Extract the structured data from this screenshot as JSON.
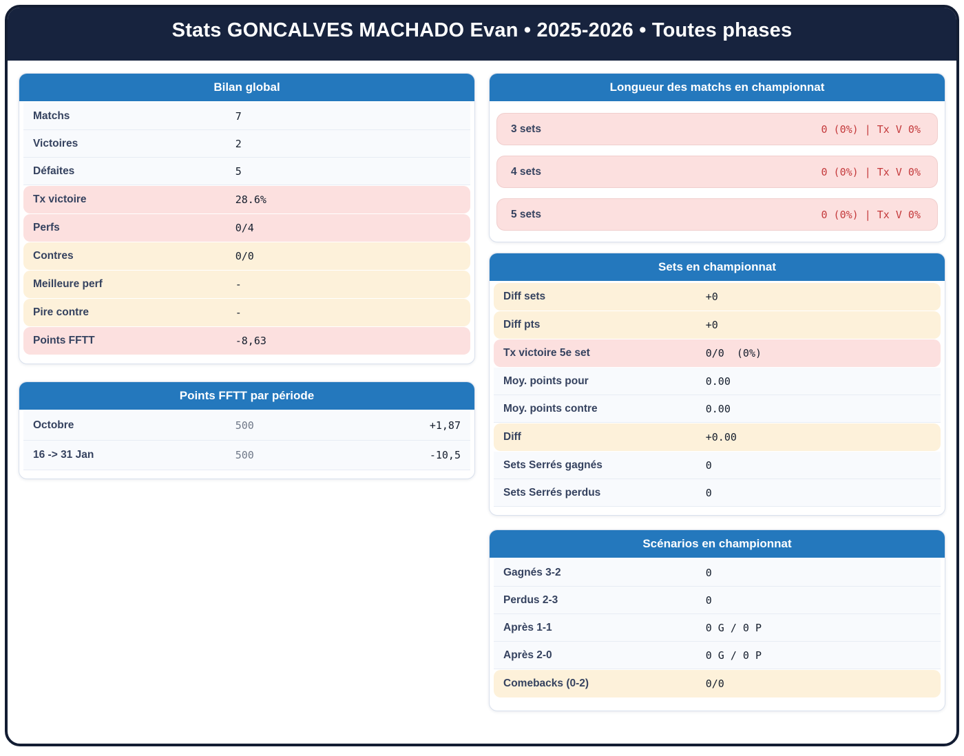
{
  "header": {
    "title": "Stats GONCALVES MACHADO Evan • 2025-2026 • Toutes phases"
  },
  "colors": {
    "navy": "#17233e",
    "card_header_blue": "#2478bd",
    "highlight_pink": "#fce0df",
    "highlight_cream": "#fdf1da",
    "alert_red": "#c43a3c"
  },
  "cards": {
    "bilan": {
      "title": "Bilan global",
      "rows": [
        {
          "label": "Matchs",
          "value": "7"
        },
        {
          "label": "Victoires",
          "value": "2"
        },
        {
          "label": "Défaites",
          "value": "5"
        },
        {
          "label": "Tx victoire",
          "value": "28.6%"
        },
        {
          "label": "Perfs",
          "value": "0/4"
        },
        {
          "label": "Contres",
          "value": "0/0"
        },
        {
          "label": "Meilleure perf",
          "value": "-"
        },
        {
          "label": "Pire contre",
          "value": "-"
        },
        {
          "label": "Points FFTT",
          "value": "-8,63"
        }
      ]
    },
    "points_periode": {
      "title": "Points FFTT par période",
      "rows": [
        {
          "label": "Octobre",
          "base": "500",
          "delta": "+1,87"
        },
        {
          "label": "16 -> 31 Jan",
          "base": "500",
          "delta": "-10,5"
        }
      ]
    },
    "longueur": {
      "title": "Longueur des matchs en championnat",
      "rows": [
        {
          "label": "3 sets",
          "value": "0 (0%) | Tx V 0%"
        },
        {
          "label": "4 sets",
          "value": "0 (0%) | Tx V 0%"
        },
        {
          "label": "5 sets",
          "value": "0 (0%) | Tx V 0%"
        }
      ]
    },
    "sets": {
      "title": "Sets en championnat",
      "rows": [
        {
          "label": "Diff sets",
          "value": "+0"
        },
        {
          "label": "Diff pts",
          "value": "+0"
        },
        {
          "label": "Tx victoire 5e set",
          "value": "0/0  (0%)"
        },
        {
          "label": "Moy. points pour",
          "value": "0.00"
        },
        {
          "label": "Moy. points contre",
          "value": "0.00"
        },
        {
          "label": "Diff",
          "value": "+0.00"
        },
        {
          "label": "Sets Serrés gagnés",
          "value": "0"
        },
        {
          "label": "Sets Serrés perdus",
          "value": "0"
        }
      ]
    },
    "scenarios": {
      "title": "Scénarios en championnat",
      "rows": [
        {
          "label": "Gagnés 3-2",
          "value": "0"
        },
        {
          "label": "Perdus 2-3",
          "value": "0"
        },
        {
          "label": "Après 1-1",
          "value": "0 G / 0 P"
        },
        {
          "label": "Après 2-0",
          "value": "0 G / 0 P"
        },
        {
          "label": "Comebacks (0-2)",
          "value": "0/0"
        }
      ]
    }
  }
}
